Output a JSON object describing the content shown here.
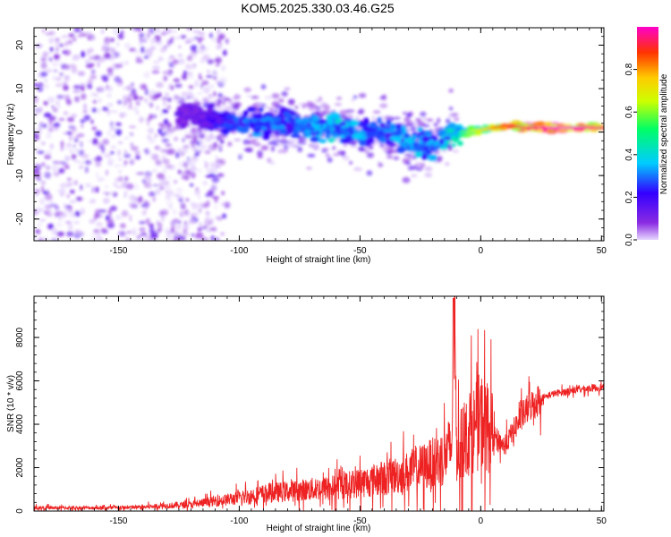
{
  "title": "KOM5.2025.330.03.46.G25",
  "chart_data": [
    {
      "type": "heatmap",
      "title": "KOM5.2025.330.03.46.G25",
      "xlabel": "Height of straight line (km)",
      "ylabel": "Frequency (Hz)",
      "xlim": [
        -185,
        51
      ],
      "ylim": [
        -25,
        24
      ],
      "x_ticks": [
        -150,
        -100,
        -50,
        0,
        50
      ],
      "y_ticks": [
        -20,
        -10,
        0,
        10,
        20
      ],
      "colorbar": {
        "label": "Normalized spectral amplitude",
        "range": [
          0,
          1
        ],
        "ticks": [
          0.0,
          0.2,
          0.4,
          0.6,
          0.8
        ],
        "colors": [
          "#e6d7ff",
          "#8a2be2",
          "#3300ff",
          "#00ccff",
          "#00ff66",
          "#ccff00",
          "#ffcc00",
          "#ff3300",
          "#ff00cc"
        ]
      },
      "ridge": [
        {
          "x": -120,
          "y": 4,
          "amplitude": 0.15
        },
        {
          "x": -110,
          "y": 3,
          "amplitude": 0.25
        },
        {
          "x": -100,
          "y": 2,
          "amplitude": 0.3
        },
        {
          "x": -90,
          "y": 2,
          "amplitude": 0.35
        },
        {
          "x": -80,
          "y": 2,
          "amplitude": 0.3
        },
        {
          "x": -70,
          "y": 1,
          "amplitude": 0.35
        },
        {
          "x": -60,
          "y": 1,
          "amplitude": 0.4
        },
        {
          "x": -50,
          "y": 0,
          "amplitude": 0.35
        },
        {
          "x": -40,
          "y": 0,
          "amplitude": 0.3
        },
        {
          "x": -30,
          "y": -2,
          "amplitude": 0.4
        },
        {
          "x": -20,
          "y": -3,
          "amplitude": 0.35
        },
        {
          "x": -10,
          "y": 0,
          "amplitude": 0.5
        },
        {
          "x": 0,
          "y": 0.5,
          "amplitude": 0.7
        },
        {
          "x": 10,
          "y": 1.5,
          "amplitude": 0.9
        },
        {
          "x": 20,
          "y": 1,
          "amplitude": 0.95
        },
        {
          "x": 30,
          "y": 1,
          "amplitude": 1.0
        },
        {
          "x": 40,
          "y": 1,
          "amplitude": 1.0
        },
        {
          "x": 50,
          "y": 1,
          "amplitude": 0.95
        }
      ]
    },
    {
      "type": "line",
      "xlabel": "Height of straight line (km)",
      "ylabel": "SNR (10 * v/v)",
      "xlim": [
        -185,
        51
      ],
      "ylim": [
        0,
        9900
      ],
      "x_ticks": [
        -150,
        -100,
        -50,
        0,
        50
      ],
      "y_ticks": [
        0,
        2000,
        4000,
        6000,
        8000
      ],
      "series": [
        {
          "name": "SNR",
          "color": "#ee2222",
          "x": [
            -185,
            -170,
            -150,
            -140,
            -130,
            -120,
            -110,
            -100,
            -90,
            -80,
            -70,
            -60,
            -50,
            -40,
            -30,
            -20,
            -15,
            -12,
            -11,
            -10,
            -5,
            0,
            5,
            10,
            15,
            20,
            25,
            30,
            35,
            40,
            45,
            50
          ],
          "values": [
            150,
            150,
            150,
            180,
            250,
            300,
            450,
            600,
            800,
            900,
            1000,
            1100,
            1300,
            1500,
            1800,
            2200,
            2500,
            3000,
            9800,
            2800,
            3500,
            4200,
            3500,
            3000,
            4000,
            4800,
            5200,
            5400,
            5500,
            5600,
            5650,
            5700
          ]
        }
      ]
    }
  ]
}
